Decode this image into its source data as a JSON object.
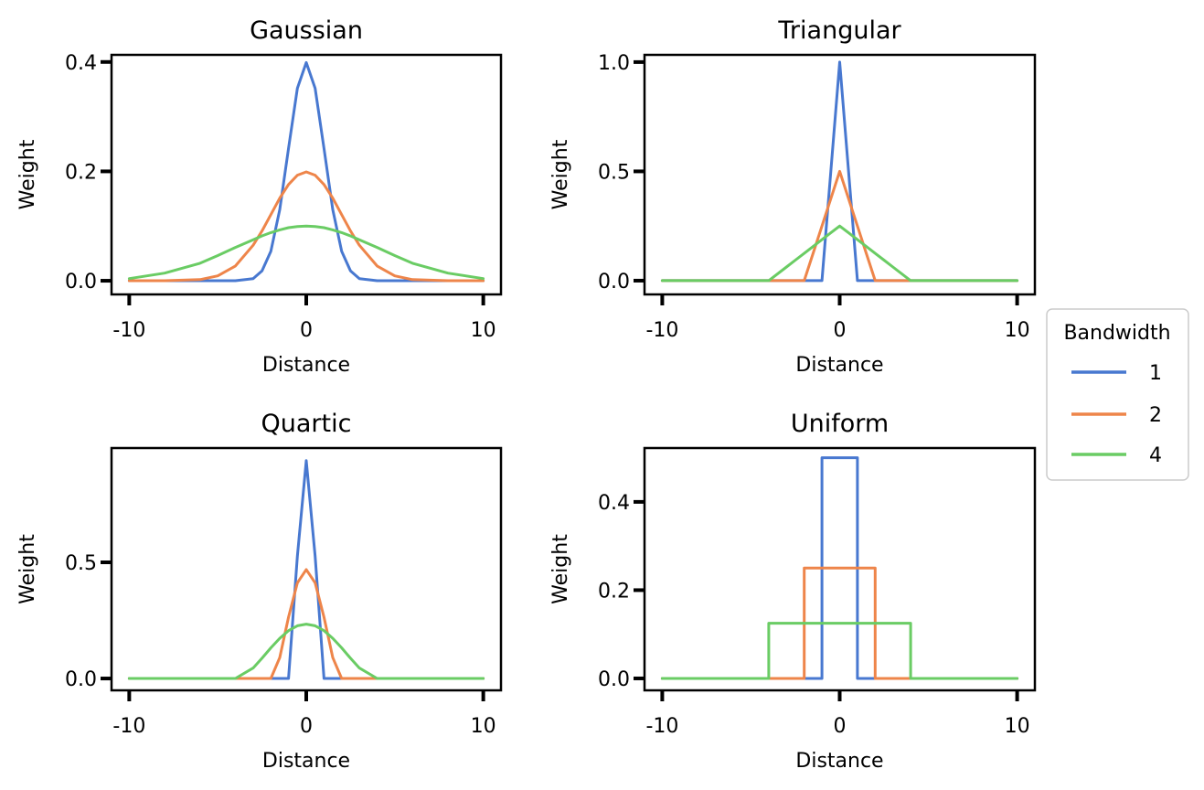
{
  "chart_data": [
    {
      "type": "line",
      "title": "Gaussian",
      "xlabel": "Distance",
      "ylabel": "Weight",
      "xlim": [
        -11,
        11
      ],
      "ylim": [
        -0.025,
        0.413
      ],
      "xticks": [
        -10,
        0,
        10
      ],
      "yticks": [
        0.0,
        0.2,
        0.4
      ],
      "yticklabels": [
        "0.0",
        "0.2",
        "0.4"
      ],
      "x": [
        -10,
        -8,
        -6,
        -5,
        -4,
        -3,
        -2.5,
        -2,
        -1.5,
        -1,
        -0.5,
        0,
        0.5,
        1,
        1.5,
        2,
        2.5,
        3,
        4,
        5,
        6,
        8,
        10
      ],
      "series": [
        {
          "name": "1",
          "values": [
            0,
            0,
            0,
            0,
            0,
            0.004,
            0.018,
            0.054,
            0.13,
            0.242,
            0.352,
            0.399,
            0.352,
            0.242,
            0.13,
            0.054,
            0.018,
            0.004,
            0,
            0,
            0,
            0,
            0
          ]
        },
        {
          "name": "2",
          "values": [
            0,
            0,
            0.002,
            0.009,
            0.027,
            0.065,
            0.091,
            0.121,
            0.151,
            0.176,
            0.193,
            0.199,
            0.193,
            0.176,
            0.151,
            0.121,
            0.091,
            0.065,
            0.027,
            0.009,
            0.002,
            0,
            0
          ]
        },
        {
          "name": "4",
          "values": [
            0.004,
            0.014,
            0.032,
            0.046,
            0.061,
            0.075,
            0.082,
            0.088,
            0.093,
            0.097,
            0.099,
            0.1,
            0.099,
            0.097,
            0.093,
            0.088,
            0.082,
            0.075,
            0.061,
            0.046,
            0.032,
            0.014,
            0.004
          ]
        }
      ]
    },
    {
      "type": "line",
      "title": "Triangular",
      "xlabel": "Distance",
      "ylabel": "Weight",
      "xlim": [
        -11,
        11
      ],
      "ylim": [
        -0.063,
        1.033
      ],
      "xticks": [
        -10,
        0,
        10
      ],
      "yticks": [
        0.0,
        0.5,
        1.0
      ],
      "yticklabels": [
        "0.0",
        "0.5",
        "1.0"
      ],
      "x": [
        -10,
        -8,
        -6,
        -5,
        -4,
        -3,
        -2.5,
        -2,
        -1.5,
        -1,
        -0.5,
        0,
        0.5,
        1,
        1.5,
        2,
        2.5,
        3,
        4,
        5,
        6,
        8,
        10
      ],
      "series": [
        {
          "name": "1",
          "values": [
            0,
            0,
            0,
            0,
            0,
            0,
            0,
            0,
            0,
            0,
            0.5,
            1,
            0.5,
            0,
            0,
            0,
            0,
            0,
            0,
            0,
            0,
            0,
            0
          ]
        },
        {
          "name": "2",
          "values": [
            0,
            0,
            0,
            0,
            0,
            0,
            0,
            0,
            0.125,
            0.25,
            0.375,
            0.5,
            0.375,
            0.25,
            0.125,
            0,
            0,
            0,
            0,
            0,
            0,
            0,
            0
          ]
        },
        {
          "name": "4",
          "values": [
            0,
            0,
            0,
            0,
            0,
            0.0625,
            0.094,
            0.125,
            0.156,
            0.1875,
            0.219,
            0.25,
            0.219,
            0.1875,
            0.156,
            0.125,
            0.094,
            0.0625,
            0,
            0,
            0,
            0,
            0
          ]
        }
      ]
    },
    {
      "type": "line",
      "title": "Quartic",
      "xlabel": "Distance",
      "ylabel": "Weight",
      "xlim": [
        -11,
        11
      ],
      "ylim": [
        -0.051,
        0.992
      ],
      "xticks": [
        -10,
        0,
        10
      ],
      "yticks": [
        0.0,
        0.5
      ],
      "yticklabels": [
        "0.0",
        "0.5"
      ],
      "x": [
        -10,
        -8,
        -6,
        -5,
        -4,
        -3,
        -2.5,
        -2,
        -1.5,
        -1,
        -0.5,
        0,
        0.5,
        1,
        1.5,
        2,
        2.5,
        3,
        4,
        5,
        6,
        8,
        10
      ],
      "series": [
        {
          "name": "1",
          "values": [
            0,
            0,
            0,
            0,
            0,
            0,
            0,
            0,
            0,
            0,
            0.527,
            0.9375,
            0.527,
            0,
            0,
            0,
            0,
            0,
            0,
            0,
            0,
            0,
            0
          ]
        },
        {
          "name": "2",
          "values": [
            0,
            0,
            0,
            0,
            0,
            0,
            0,
            0,
            0.09,
            0.264,
            0.412,
            0.469,
            0.412,
            0.264,
            0.09,
            0,
            0,
            0,
            0,
            0,
            0,
            0,
            0
          ]
        },
        {
          "name": "4",
          "values": [
            0,
            0,
            0,
            0,
            0,
            0.045,
            0.087,
            0.132,
            0.173,
            0.206,
            0.227,
            0.234,
            0.227,
            0.206,
            0.173,
            0.132,
            0.087,
            0.045,
            0,
            0,
            0,
            0,
            0
          ]
        }
      ]
    },
    {
      "type": "line",
      "title": "Uniform",
      "xlabel": "Distance",
      "ylabel": "Weight",
      "xlim": [
        -11,
        11
      ],
      "ylim": [
        -0.027,
        0.522
      ],
      "xticks": [
        -10,
        0,
        10
      ],
      "yticks": [
        0.0,
        0.2,
        0.4
      ],
      "yticklabels": [
        "0.0",
        "0.2",
        "0.4"
      ],
      "series": [
        {
          "name": "1",
          "x": [
            -10,
            -1,
            -1,
            1,
            1,
            10
          ],
          "values": [
            0,
            0,
            0.5,
            0.5,
            0,
            0
          ]
        },
        {
          "name": "2",
          "x": [
            -10,
            -2,
            -2,
            2,
            2,
            10
          ],
          "values": [
            0,
            0,
            0.25,
            0.25,
            0,
            0
          ]
        },
        {
          "name": "4",
          "x": [
            -10,
            -4,
            -4,
            4,
            4,
            10
          ],
          "values": [
            0,
            0,
            0.125,
            0.125,
            0,
            0
          ]
        }
      ]
    }
  ],
  "legend": {
    "title": "Bandwidth",
    "placement": "right",
    "entries": [
      "1",
      "2",
      "4"
    ]
  },
  "colors": {
    "1": "#4878d0",
    "2": "#ee854a",
    "4": "#6acc64"
  }
}
